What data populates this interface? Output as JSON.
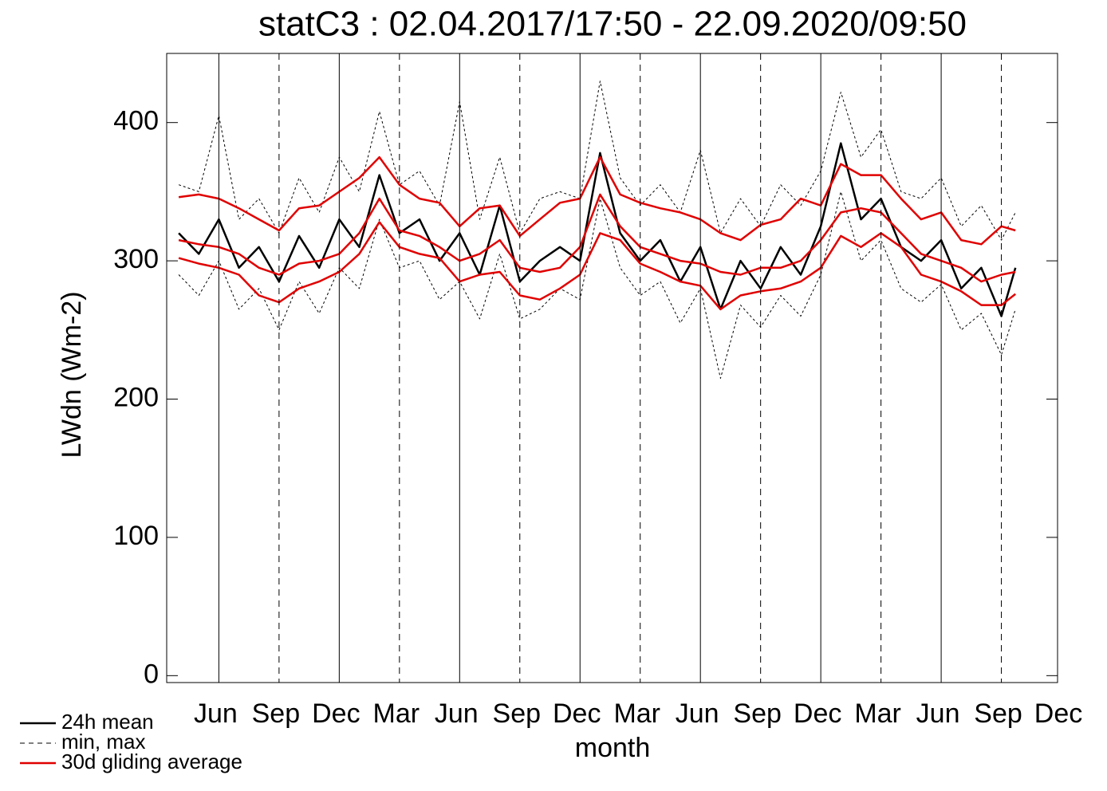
{
  "chart_data": {
    "type": "line",
    "title": "statC3 : 02.04.2017/17:50 - 22.09.2020/09:50",
    "x_label": "month",
    "y_label": "LWdn (Wm-2)",
    "x": [
      3,
      4,
      5,
      6,
      7,
      8,
      9,
      10,
      11,
      12,
      13,
      14,
      15,
      16,
      17,
      18,
      19,
      20,
      21,
      22,
      23,
      24,
      25,
      26,
      27,
      28,
      29,
      30,
      31,
      32,
      33,
      34,
      35,
      36,
      37,
      38,
      39,
      40,
      41,
      42,
      43,
      44,
      44.7
    ],
    "xlim": [
      2.4,
      46.8
    ],
    "xticks": [
      {
        "value": 5,
        "label": "Jun"
      },
      {
        "value": 8,
        "label": "Sep"
      },
      {
        "value": 11,
        "label": "Dec"
      },
      {
        "value": 14,
        "label": "Mar"
      },
      {
        "value": 17,
        "label": "Jun"
      },
      {
        "value": 20,
        "label": "Sep"
      },
      {
        "value": 23,
        "label": "Dec"
      },
      {
        "value": 26,
        "label": "Mar"
      },
      {
        "value": 29,
        "label": "Jun"
      },
      {
        "value": 32,
        "label": "Sep"
      },
      {
        "value": 35,
        "label": "Dec"
      },
      {
        "value": 38,
        "label": "Mar"
      },
      {
        "value": 41,
        "label": "Jun"
      },
      {
        "value": 44,
        "label": "Sep"
      },
      {
        "value": 47,
        "label": "Dec"
      }
    ],
    "ylim": [
      -5,
      450
    ],
    "yticks": [
      0,
      100,
      200,
      300,
      400
    ],
    "series": [
      {
        "name": "24h mean",
        "color": "#000000",
        "dash": false,
        "width": 2.5,
        "lines": [
          [
            320,
            305,
            330,
            295,
            310,
            285,
            318,
            295,
            330,
            310,
            362,
            320,
            330,
            300,
            320,
            290,
            340,
            285,
            300,
            310,
            300,
            378,
            320,
            300,
            315,
            285,
            310,
            265,
            300,
            280,
            310,
            290,
            325,
            385,
            330,
            345,
            310,
            300,
            315,
            280,
            295,
            260,
            295
          ]
        ]
      },
      {
        "name": "min, max",
        "color": "#000000",
        "dash": true,
        "width": 1,
        "lines": [
          [
            290,
            275,
            300,
            265,
            280,
            250,
            285,
            262,
            295,
            280,
            330,
            295,
            300,
            272,
            285,
            258,
            305,
            258,
            265,
            280,
            272,
            345,
            295,
            275,
            285,
            255,
            280,
            215,
            268,
            252,
            275,
            260,
            290,
            350,
            300,
            315,
            280,
            270,
            283,
            250,
            262,
            232,
            265
          ],
          [
            355,
            350,
            405,
            330,
            345,
            320,
            360,
            335,
            375,
            350,
            408,
            355,
            365,
            340,
            415,
            330,
            375,
            320,
            345,
            350,
            345,
            430,
            360,
            340,
            355,
            335,
            380,
            320,
            345,
            325,
            355,
            340,
            365,
            422,
            375,
            395,
            350,
            345,
            360,
            325,
            340,
            315,
            335
          ]
        ]
      },
      {
        "name": "30d gliding average",
        "color": "#e00000",
        "dash": false,
        "width": 2.5,
        "lines": [
          [
            346,
            348,
            345,
            338,
            330,
            322,
            338,
            340,
            350,
            360,
            375,
            355,
            345,
            342,
            325,
            338,
            340,
            318,
            330,
            342,
            345,
            375,
            348,
            342,
            338,
            335,
            330,
            320,
            315,
            326,
            330,
            345,
            340,
            370,
            362,
            362,
            345,
            330,
            335,
            315,
            312,
            325,
            322
          ],
          [
            315,
            312,
            310,
            305,
            295,
            290,
            298,
            300,
            305,
            320,
            345,
            322,
            318,
            310,
            300,
            305,
            315,
            295,
            292,
            295,
            310,
            348,
            325,
            310,
            305,
            300,
            298,
            292,
            290,
            295,
            295,
            300,
            315,
            335,
            338,
            335,
            320,
            305,
            300,
            295,
            285,
            290,
            292
          ],
          [
            302,
            298,
            295,
            290,
            275,
            270,
            280,
            285,
            292,
            305,
            328,
            310,
            305,
            302,
            285,
            290,
            292,
            275,
            272,
            280,
            290,
            320,
            315,
            298,
            292,
            285,
            282,
            265,
            275,
            278,
            280,
            285,
            295,
            318,
            310,
            320,
            310,
            290,
            285,
            278,
            268,
            268,
            276
          ]
        ]
      }
    ]
  }
}
